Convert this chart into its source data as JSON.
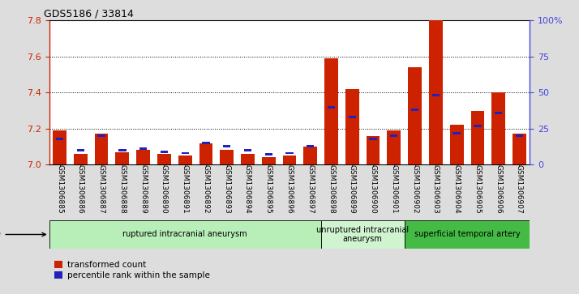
{
  "title": "GDS5186 / 33814",
  "samples": [
    "GSM1306885",
    "GSM1306886",
    "GSM1306887",
    "GSM1306888",
    "GSM1306889",
    "GSM1306890",
    "GSM1306891",
    "GSM1306892",
    "GSM1306893",
    "GSM1306894",
    "GSM1306895",
    "GSM1306896",
    "GSM1306897",
    "GSM1306898",
    "GSM1306899",
    "GSM1306900",
    "GSM1306901",
    "GSM1306902",
    "GSM1306903",
    "GSM1306904",
    "GSM1306905",
    "GSM1306906",
    "GSM1306907"
  ],
  "red_values": [
    7.19,
    7.06,
    7.17,
    7.07,
    7.08,
    7.06,
    7.05,
    7.12,
    7.08,
    7.06,
    7.04,
    7.05,
    7.1,
    7.59,
    7.42,
    7.16,
    7.19,
    7.54,
    7.8,
    7.22,
    7.3,
    7.4,
    7.17
  ],
  "blue_percentiles": [
    18,
    10,
    20,
    10,
    11,
    9,
    8,
    15,
    13,
    10,
    7,
    8,
    13,
    40,
    33,
    18,
    20,
    38,
    48,
    22,
    27,
    36,
    20
  ],
  "group_definitions": [
    {
      "start": 0,
      "end": 13,
      "color": "#b8eeb8",
      "label": "ruptured intracranial aneurysm"
    },
    {
      "start": 13,
      "end": 17,
      "color": "#d0f4d0",
      "label": "unruptured intracranial\naneurysm"
    },
    {
      "start": 17,
      "end": 23,
      "color": "#44bb44",
      "label": "superficial temporal artery"
    }
  ],
  "ylim_left": [
    7.0,
    7.8
  ],
  "ylim_right": [
    0,
    100
  ],
  "yticks_left": [
    7.0,
    7.2,
    7.4,
    7.6,
    7.8
  ],
  "yticks_right": [
    0,
    25,
    50,
    75,
    100
  ],
  "ylabel_right_labels": [
    "0",
    "25",
    "50",
    "75",
    "100%"
  ],
  "left_color": "#cc2200",
  "right_color": "#4444dd",
  "blue_color": "#2222bb",
  "bar_width": 0.65,
  "bg_color": "#dddddd",
  "plot_bg": "#ffffff",
  "legend_red": "transformed count",
  "legend_blue": "percentile rank within the sample"
}
